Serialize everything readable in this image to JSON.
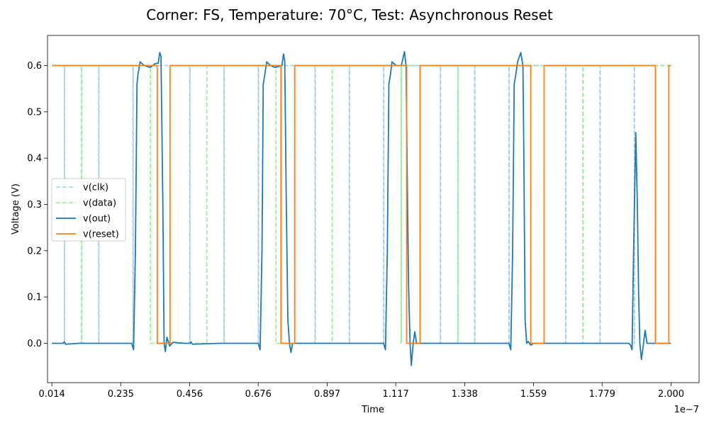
{
  "chart_data": {
    "type": "line",
    "title": "Corner: FS, Temperature: 70°C, Test: Asynchronous Reset",
    "xlabel": "Time",
    "ylabel": "Voltage (V)",
    "x_offset_label": "1e−7",
    "x_scale": 1e-07,
    "xlim": [
      0.0,
      2.09
    ],
    "ylim": [
      -0.085,
      0.665
    ],
    "x_ticks": [
      "0.014",
      "0.235",
      "0.456",
      "0.676",
      "0.897",
      "1.117",
      "1.338",
      "1.559",
      "1.779",
      "2.000"
    ],
    "x_tick_values": [
      0.014,
      0.235,
      0.456,
      0.676,
      0.897,
      1.117,
      1.338,
      1.559,
      1.779,
      2.0
    ],
    "y_ticks": [
      "0.0",
      "0.1",
      "0.2",
      "0.3",
      "0.4",
      "0.5",
      "0.6"
    ],
    "y_tick_values": [
      0.0,
      0.1,
      0.2,
      0.3,
      0.4,
      0.5,
      0.6
    ],
    "grid": false,
    "legend_placement": "center-left",
    "series": [
      {
        "name": "v(clk)",
        "color": "#a6cee3",
        "style": "dashed",
        "points": [
          [
            0.014,
            0.6
          ],
          [
            0.054,
            0.6
          ],
          [
            0.054,
            0.0
          ],
          [
            0.055,
            0.0
          ],
          [
            0.055,
            0.6
          ],
          [
            0.164,
            0.6
          ],
          [
            0.164,
            0.0
          ],
          [
            0.165,
            0.0
          ],
          [
            0.165,
            0.6
          ],
          [
            0.274,
            0.6
          ],
          [
            0.274,
            0.0
          ],
          [
            0.275,
            0.0
          ],
          [
            0.275,
            0.6
          ],
          [
            0.456,
            0.6
          ],
          [
            0.456,
            0.0
          ],
          [
            0.457,
            0.0
          ],
          [
            0.457,
            0.6
          ],
          [
            0.566,
            0.6
          ],
          [
            0.566,
            0.0
          ],
          [
            0.567,
            0.0
          ],
          [
            0.567,
            0.6
          ],
          [
            0.676,
            0.6
          ],
          [
            0.676,
            0.0
          ],
          [
            0.677,
            0.0
          ],
          [
            0.677,
            0.6
          ],
          [
            0.858,
            0.6
          ],
          [
            0.858,
            0.0
          ],
          [
            0.859,
            0.0
          ],
          [
            0.859,
            0.6
          ],
          [
            0.968,
            0.6
          ],
          [
            0.968,
            0.0
          ],
          [
            0.969,
            0.0
          ],
          [
            0.969,
            0.6
          ],
          [
            1.078,
            0.6
          ],
          [
            1.078,
            0.0
          ],
          [
            1.079,
            0.0
          ],
          [
            1.079,
            0.6
          ],
          [
            1.26,
            0.6
          ],
          [
            1.26,
            0.0
          ],
          [
            1.261,
            0.0
          ],
          [
            1.261,
            0.6
          ],
          [
            1.37,
            0.6
          ],
          [
            1.37,
            0.0
          ],
          [
            1.371,
            0.0
          ],
          [
            1.371,
            0.6
          ],
          [
            1.48,
            0.6
          ],
          [
            1.48,
            0.0
          ],
          [
            1.481,
            0.0
          ],
          [
            1.481,
            0.6
          ],
          [
            1.662,
            0.6
          ],
          [
            1.662,
            0.0
          ],
          [
            1.663,
            0.0
          ],
          [
            1.663,
            0.6
          ],
          [
            1.772,
            0.6
          ],
          [
            1.772,
            0.0
          ],
          [
            1.773,
            0.0
          ],
          [
            1.773,
            0.6
          ],
          [
            1.882,
            0.6
          ],
          [
            1.882,
            0.0
          ],
          [
            1.883,
            0.0
          ],
          [
            1.883,
            0.6
          ],
          [
            2.0,
            0.6
          ]
        ]
      },
      {
        "name": "v(data)",
        "color": "#90ee90",
        "style": "dashed",
        "points": [
          [
            0.014,
            0.6
          ],
          [
            0.109,
            0.6
          ],
          [
            0.109,
            0.0
          ],
          [
            0.11,
            0.0
          ],
          [
            0.11,
            0.6
          ],
          [
            0.33,
            0.6
          ],
          [
            0.33,
            0.0
          ],
          [
            0.511,
            0.0
          ],
          [
            0.511,
            0.6
          ],
          [
            0.733,
            0.6
          ],
          [
            0.733,
            0.0
          ],
          [
            0.913,
            0.0
          ],
          [
            0.913,
            0.6
          ],
          [
            1.134,
            0.6
          ],
          [
            1.134,
            0.0
          ],
          [
            1.135,
            0.0
          ],
          [
            1.135,
            0.6
          ],
          [
            1.316,
            0.6
          ],
          [
            1.316,
            0.0
          ],
          [
            1.317,
            0.0
          ],
          [
            1.317,
            0.6
          ],
          [
            1.717,
            0.6
          ],
          [
            1.717,
            0.0
          ],
          [
            1.718,
            0.0
          ],
          [
            1.718,
            0.6
          ],
          [
            2.0,
            0.6
          ]
        ]
      },
      {
        "name": "v(out)",
        "color": "#1f77b4",
        "style": "solid",
        "points": [
          [
            0.014,
            0.0
          ],
          [
            0.05,
            0.0
          ],
          [
            0.054,
            0.003
          ],
          [
            0.058,
            -0.002
          ],
          [
            0.1,
            0.0
          ],
          [
            0.16,
            0.0
          ],
          [
            0.2,
            0.0
          ],
          [
            0.27,
            0.0
          ],
          [
            0.276,
            -0.014
          ],
          [
            0.282,
            0.2
          ],
          [
            0.287,
            0.56
          ],
          [
            0.29,
            0.58
          ],
          [
            0.297,
            0.608
          ],
          [
            0.31,
            0.6
          ],
          [
            0.33,
            0.596
          ],
          [
            0.345,
            0.604
          ],
          [
            0.355,
            0.605
          ],
          [
            0.36,
            0.628
          ],
          [
            0.364,
            0.62
          ],
          [
            0.37,
            0.3
          ],
          [
            0.374,
            0.0
          ],
          [
            0.378,
            -0.018
          ],
          [
            0.383,
            0.013
          ],
          [
            0.392,
            -0.006
          ],
          [
            0.402,
            0.002
          ],
          [
            0.44,
            0.0
          ],
          [
            0.457,
            0.0
          ],
          [
            0.46,
            0.003
          ],
          [
            0.465,
            -0.002
          ],
          [
            0.55,
            0.0
          ],
          [
            0.57,
            0.0
          ],
          [
            0.6,
            0.0
          ],
          [
            0.676,
            0.0
          ],
          [
            0.682,
            -0.014
          ],
          [
            0.688,
            0.2
          ],
          [
            0.692,
            0.56
          ],
          [
            0.697,
            0.58
          ],
          [
            0.703,
            0.608
          ],
          [
            0.715,
            0.6
          ],
          [
            0.73,
            0.596
          ],
          [
            0.752,
            0.6
          ],
          [
            0.757,
            0.625
          ],
          [
            0.761,
            0.61
          ],
          [
            0.766,
            0.3
          ],
          [
            0.771,
            0.05
          ],
          [
            0.776,
            0.0
          ],
          [
            0.781,
            -0.02
          ],
          [
            0.786,
            0.0
          ],
          [
            0.8,
            0.0
          ],
          [
            0.9,
            0.0
          ],
          [
            1.0,
            0.0
          ],
          [
            1.078,
            0.0
          ],
          [
            1.084,
            -0.014
          ],
          [
            1.09,
            0.2
          ],
          [
            1.095,
            0.56
          ],
          [
            1.1,
            0.58
          ],
          [
            1.105,
            0.608
          ],
          [
            1.118,
            0.6
          ],
          [
            1.135,
            0.6
          ],
          [
            1.145,
            0.63
          ],
          [
            1.15,
            0.6
          ],
          [
            1.155,
            0.3
          ],
          [
            1.158,
            0.13
          ],
          [
            1.163,
            0.0
          ],
          [
            1.167,
            -0.048
          ],
          [
            1.173,
            0.0
          ],
          [
            1.178,
            0.025
          ],
          [
            1.184,
            0.0
          ],
          [
            1.25,
            0.0
          ],
          [
            1.4,
            0.0
          ],
          [
            1.48,
            0.0
          ],
          [
            1.486,
            -0.014
          ],
          [
            1.492,
            0.2
          ],
          [
            1.497,
            0.56
          ],
          [
            1.502,
            0.58
          ],
          [
            1.508,
            0.608
          ],
          [
            1.518,
            0.628
          ],
          [
            1.525,
            0.6
          ],
          [
            1.528,
            0.4
          ],
          [
            1.532,
            0.05
          ],
          [
            1.537,
            0.0
          ],
          [
            1.542,
            0.004
          ],
          [
            1.55,
            -0.004
          ],
          [
            1.56,
            0.0
          ],
          [
            1.65,
            0.0
          ],
          [
            1.75,
            0.0
          ],
          [
            1.865,
            0.0
          ],
          [
            1.87,
            -0.004
          ],
          [
            1.875,
            -0.014
          ],
          [
            1.88,
            0.2
          ],
          [
            1.887,
            0.455
          ],
          [
            1.892,
            0.3
          ],
          [
            1.896,
            0.11
          ],
          [
            1.9,
            0.0
          ],
          [
            1.905,
            -0.035
          ],
          [
            1.91,
            -0.01
          ],
          [
            1.917,
            0.028
          ],
          [
            1.923,
            0.0
          ],
          [
            1.96,
            0.0
          ],
          [
            2.0,
            0.0
          ]
        ]
      },
      {
        "name": "v(reset)",
        "color": "#ff7f0e",
        "style": "solid",
        "points": [
          [
            0.014,
            0.6
          ],
          [
            0.352,
            0.6
          ],
          [
            0.352,
            0.0
          ],
          [
            0.393,
            0.0
          ],
          [
            0.393,
            0.6
          ],
          [
            0.749,
            0.6
          ],
          [
            0.749,
            0.0
          ],
          [
            0.793,
            0.0
          ],
          [
            0.793,
            0.6
          ],
          [
            1.152,
            0.6
          ],
          [
            1.152,
            0.0
          ],
          [
            1.195,
            0.0
          ],
          [
            1.195,
            0.6
          ],
          [
            1.55,
            0.6
          ],
          [
            1.55,
            0.0
          ],
          [
            1.593,
            0.0
          ],
          [
            1.593,
            0.6
          ],
          [
            1.95,
            0.6
          ],
          [
            1.95,
            0.0
          ],
          [
            1.993,
            0.0
          ],
          [
            1.993,
            0.6
          ],
          [
            2.0,
            0.6
          ]
        ]
      }
    ]
  }
}
